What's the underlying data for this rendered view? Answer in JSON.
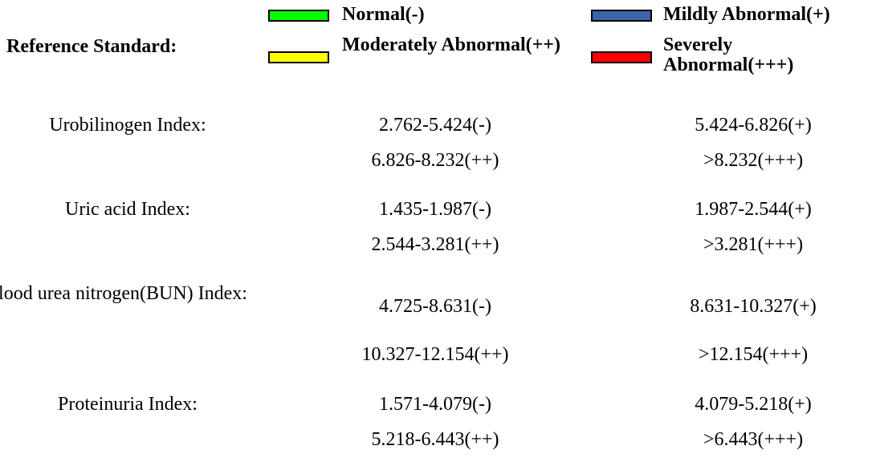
{
  "reference": {
    "title": "Reference Standard:",
    "legend": [
      {
        "label": "Normal(-)",
        "color": "#00ff00"
      },
      {
        "label": "Mildly Abnormal(+)",
        "color": "#3a66a6"
      },
      {
        "label": "Moderately Abnormal(++)",
        "color": "#ffff00"
      },
      {
        "label": "Severely Abnormal(+++)",
        "color": "#ff0000"
      }
    ]
  },
  "indices": [
    {
      "name": "Urobilinogen Index:",
      "ranges": [
        "2.762-5.424(-)",
        "5.424-6.826(+)",
        "6.826-8.232(++)",
        ">8.232(+++)"
      ]
    },
    {
      "name": "Uric acid Index:",
      "ranges": [
        "1.435-1.987(-)",
        "1.987-2.544(+)",
        "2.544-3.281(++)",
        ">3.281(+++)"
      ]
    },
    {
      "name": "Blood urea nitrogen(BUN) Index:",
      "ranges": [
        "4.725-8.631(-)",
        "8.631-10.327(+)",
        "10.327-12.154(++)",
        ">12.154(+++)"
      ]
    },
    {
      "name": "Proteinuria Index:",
      "ranges": [
        "1.571-4.079(-)",
        "4.079-5.218(+)",
        "5.218-6.443(++)",
        ">6.443(+++)"
      ]
    }
  ]
}
